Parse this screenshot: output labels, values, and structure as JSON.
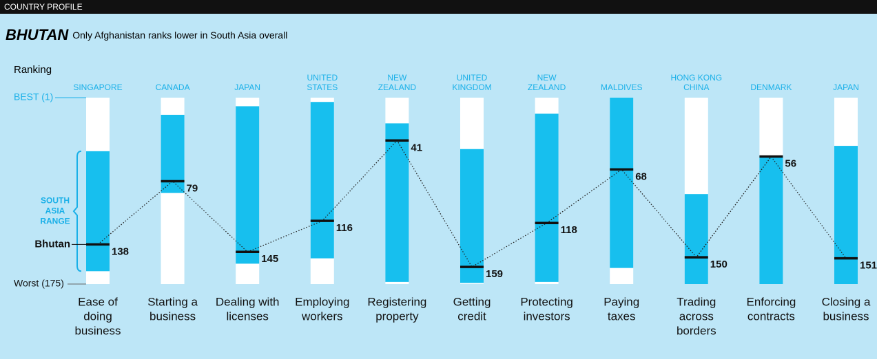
{
  "header": "COUNTRY PROFILE",
  "chart_data": {
    "type": "range",
    "title": "BHUTAN",
    "subtitle": "Only Afghanistan ranks lower in South Asia overall",
    "y_label": "Ranking",
    "range_label": [
      "SOUTH",
      "ASIA",
      "RANGE"
    ],
    "series_name": "Bhutan",
    "ylim": [
      1,
      175
    ],
    "yticks": [
      {
        "value": 1,
        "label": "BEST (1)"
      },
      {
        "value": 175,
        "label": "Worst (175)"
      }
    ],
    "range_color": "#17bfee",
    "categories": [
      [
        "Ease of",
        "doing",
        "business"
      ],
      [
        "Starting a",
        "business"
      ],
      [
        "Dealing with",
        "licenses"
      ],
      [
        "Employing",
        "workers"
      ],
      [
        "Registering",
        "property"
      ],
      [
        "Getting",
        "credit"
      ],
      [
        "Protecting",
        "investors"
      ],
      [
        "Paying",
        "taxes"
      ],
      [
        "Trading",
        "across",
        "borders"
      ],
      [
        "Enforcing",
        "contracts"
      ],
      [
        "Closing a",
        "business"
      ]
    ],
    "best": [
      [
        "SINGAPORE"
      ],
      [
        "CANADA"
      ],
      [
        "JAPAN"
      ],
      [
        "UNITED",
        "STATES"
      ],
      [
        "NEW",
        "ZEALAND"
      ],
      [
        "UNITED",
        "KINGDOM"
      ],
      [
        "NEW",
        "ZEALAND"
      ],
      [
        "MALDIVES"
      ],
      [
        "HONG KONG",
        "CHINA"
      ],
      [
        "DENMARK"
      ],
      [
        "JAPAN"
      ]
    ],
    "range_low": [
      51,
      17,
      9,
      5,
      25,
      49,
      16,
      1,
      91,
      56,
      46
    ],
    "range_high": [
      163,
      90,
      156,
      151,
      173,
      174,
      173,
      160,
      175,
      175,
      175
    ],
    "values": [
      138,
      79,
      145,
      116,
      41,
      159,
      118,
      68,
      150,
      56,
      151
    ]
  }
}
